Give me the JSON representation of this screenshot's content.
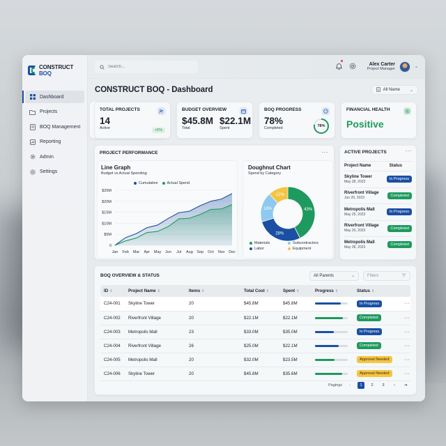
{
  "app": {
    "logo_text_a": "CONSTRUCT",
    "logo_text_b": "BOQ"
  },
  "sidebar": {
    "items": [
      {
        "label": "Dashboard",
        "icon": "grid-icon",
        "active": true
      },
      {
        "label": "Projects",
        "icon": "folder-icon"
      },
      {
        "label": "BOQ Management",
        "icon": "document-icon"
      },
      {
        "label": "Reporting",
        "icon": "chart-icon"
      },
      {
        "label": "Admin",
        "icon": "admin-gear-icon"
      },
      {
        "label": "Settings",
        "icon": "settings-icon"
      }
    ]
  },
  "topbar": {
    "search_placeholder": "Search...",
    "user_name": "Alex Carter",
    "user_role": "Project Manager"
  },
  "header": {
    "title": "CONSTRUCT BOQ - Dashboard",
    "filter_select": "All Name"
  },
  "kpis": {
    "total_projects": {
      "label": "TOTAL PROJECTS",
      "value": "14",
      "sub": "Active",
      "delta": "+5%"
    },
    "budget_overview": {
      "label": "BUDGET OVERVIEW",
      "total": "$45.8M",
      "total_label": "Total",
      "spent": "$22.1M",
      "spent_label": "Spent"
    },
    "boq_progress": {
      "label": "BOQ PROGRESS",
      "value": "78%",
      "sub": "Completed",
      "ring": "78%"
    },
    "financial_health": {
      "label": "FINANCIAL HEALTH",
      "value": "Positive"
    }
  },
  "performance": {
    "label": "PROJECT PERFORMANCE",
    "more": "···",
    "line": {
      "title": "Line Graph",
      "subtitle": "Budget vs Actual Spending",
      "legend_a": "Cumulative",
      "legend_b": "Actual Spend"
    },
    "doughnut": {
      "title": "Doughnut Chart",
      "subtitle": "Spend by Category",
      "legend": [
        "Materials",
        "Labor",
        "Subcontractors",
        "Equipment"
      ]
    }
  },
  "chart_data": [
    {
      "type": "area",
      "title": "Line Graph",
      "subtitle": "Budget vs Actual Spending",
      "categories": [
        "Jan",
        "Feb",
        "Mar",
        "Apr",
        "May",
        "Jun",
        "Jul",
        "Aug",
        "Sep",
        "Oct",
        "Nov",
        "Dec"
      ],
      "yticks": [
        "0",
        "$5M",
        "$10M",
        "$15M",
        "$20M",
        "$25M"
      ],
      "ylim": [
        0,
        25
      ],
      "series": [
        {
          "name": "Cumulative",
          "color": "#1a4fa3",
          "values": [
            0,
            3.5,
            5.3,
            8.0,
            9.2,
            12.2,
            14.8,
            15.5,
            18.0,
            20.0,
            21.0,
            23.5
          ]
        },
        {
          "name": "Actual Spend",
          "color": "#1e9a5e",
          "values": [
            0,
            2.0,
            3.3,
            5.8,
            6.3,
            8.5,
            12.0,
            12.3,
            14.0,
            16.3,
            16.5,
            18.5
          ]
        }
      ],
      "legend_position": "top",
      "grid": true
    },
    {
      "type": "pie",
      "title": "Doughnut Chart",
      "subtitle": "Spend by Category",
      "categories": [
        "Materials",
        "Labor",
        "Subcontractors",
        "Equipment"
      ],
      "values": [
        43,
        28,
        18,
        12
      ],
      "colors": [
        "#1e9a5e",
        "#1a4fa3",
        "#8ec9ef",
        "#f5c542"
      ],
      "labels": [
        "43%",
        "28%",
        "18%",
        "12%"
      ]
    }
  ],
  "active_projects": {
    "label": "ACTIVE PROJECTS",
    "col_name": "Project Name",
    "col_status": "Status",
    "rows": [
      {
        "name": "Skyline Tower",
        "date": "May 28, 2023",
        "status": "In Progress",
        "tone": "blue"
      },
      {
        "name": "Riverfront Village",
        "date": "Jun 20, 2023",
        "status": "Completed",
        "tone": "green"
      },
      {
        "name": "Metropolis Mall",
        "date": "May 25, 2023",
        "status": "In Progress",
        "tone": "blue"
      },
      {
        "name": "Riverfront Village",
        "date": "May 20, 2023",
        "status": "Completed",
        "tone": "green"
      },
      {
        "name": "Metropolis Mall",
        "date": "May 28, 2023",
        "status": "Completed",
        "tone": "green"
      }
    ]
  },
  "boq": {
    "label": "BOQ OVERVIEW & STATUS",
    "parents_select": "All Parents",
    "filters_placeholder": "Filters",
    "columns": [
      "ID",
      "Project Name",
      "Items",
      "Total Cost",
      "Spent",
      "Progress",
      "Status"
    ],
    "rows": [
      {
        "id": "C24-001",
        "name": "Skyline Tower",
        "items": "20",
        "total": "$45.8M",
        "spent": "$45.8M",
        "progress": 78,
        "bar": "#1a4fa3",
        "status": "In Progress",
        "tone": "blue"
      },
      {
        "id": "C24-002",
        "name": "Riverfront Village",
        "items": "20",
        "total": "$22.1M",
        "spent": "$22.1M",
        "progress": 85,
        "bar": "#1e9a5e",
        "status": "Completed",
        "tone": "green"
      },
      {
        "id": "C24-003",
        "name": "Metropolis Mall",
        "items": "23",
        "total": "$33.0M",
        "spent": "$35.0M",
        "progress": 57,
        "bar": "#1a4fa3",
        "status": "In Progress",
        "tone": "blue"
      },
      {
        "id": "C24-004",
        "name": "Riverfront Village",
        "items": "26",
        "total": "$25.0M",
        "spent": "$22.1M",
        "progress": 72,
        "bar": "#1a4fa3",
        "status": "Completed",
        "tone": "green"
      },
      {
        "id": "C24-005",
        "name": "Metropolis Mall",
        "items": "20",
        "total": "$32.0M",
        "spent": "$23.5M",
        "progress": 60,
        "bar": "#1e9a5e",
        "status": "Approval Needed",
        "tone": "yellow"
      },
      {
        "id": "C24-006",
        "name": "Skyline Tower",
        "items": "20",
        "total": "$45.8M",
        "spent": "$35.6M",
        "progress": 83,
        "bar": "#1e9a5e",
        "status": "Approval Needed",
        "tone": "yellow"
      }
    ],
    "pagination": {
      "label": "Pagings",
      "pages": [
        "1",
        "2",
        "3"
      ],
      "current": "1"
    }
  },
  "colors": {
    "brand_blue": "#1a4fa3",
    "brand_green": "#1e9a5e",
    "warning_yellow": "#f5c542",
    "light_blue": "#8ec9ef"
  }
}
